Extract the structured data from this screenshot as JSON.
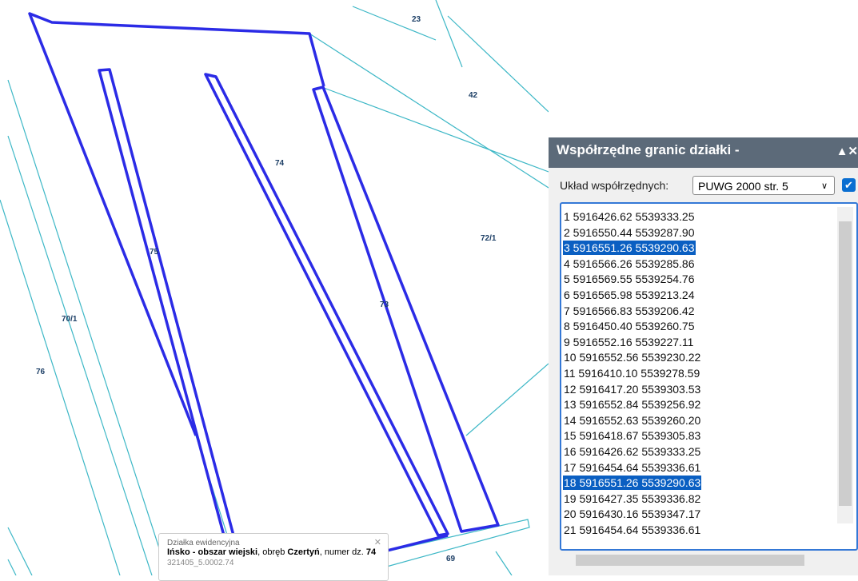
{
  "map": {
    "parcels": [
      "23",
      "42",
      "74",
      "72/1",
      "75",
      "73",
      "70/1",
      "76",
      "69"
    ]
  },
  "popup": {
    "heading": "Działka ewidencyjna",
    "line": [
      {
        "text": "Ińsko - obszar wiejski",
        "bold": true
      },
      {
        "text": ", obręb ",
        "bold": false
      },
      {
        "text": "Czertyń",
        "bold": true
      },
      {
        "text": ", numer dz. ",
        "bold": false
      },
      {
        "text": "74",
        "bold": true
      }
    ],
    "id": "321405_5.0002.74"
  },
  "panel": {
    "title": "Współrzędne granic działki -",
    "system_label": "Układ współrzędnych:",
    "system_value": "PUWG 2000 str. 5",
    "rows": [
      "1 5916426.62 5539333.25",
      "2 5916550.44 5539287.90",
      "3 5916551.26 5539290.63",
      "4 5916566.26 5539285.86",
      "5 5916569.55 5539254.76",
      "6 5916565.98 5539213.24",
      "7 5916566.83 5539206.42",
      "8 5916450.40 5539260.75",
      "9 5916552.16 5539227.11",
      "10 5916552.56 5539230.22",
      "11 5916410.10 5539278.59",
      "12 5916417.20 5539303.53",
      "13 5916552.84 5539256.92",
      "14 5916552.63 5539260.20",
      "15 5916418.67 5539305.83",
      "16 5916426.62 5539333.25",
      "17 5916454.64 5539336.61",
      "18 5916551.26 5539290.63",
      "19 5916427.35 5539336.82",
      "20 5916430.16 5539347.17",
      "21 5916454.64 5539336.61"
    ],
    "selected": [
      2,
      17
    ]
  }
}
